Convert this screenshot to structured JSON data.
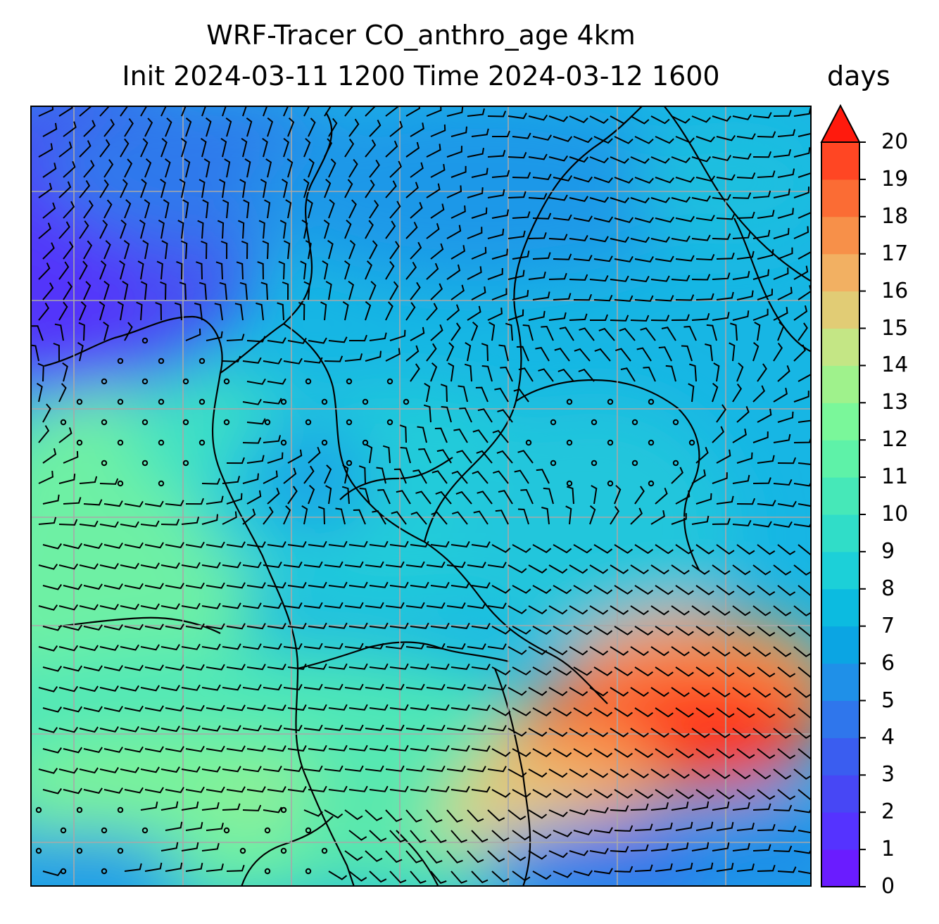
{
  "title": {
    "line1": "WRF-Tracer CO_anthro_age 4km",
    "line2": "Init 2024-03-11 1200 Time 2024-03-12 1600"
  },
  "colorbar": {
    "units": "days",
    "min": 0,
    "max": 20,
    "extend": "max",
    "ticks": [
      "0",
      "1",
      "2",
      "3",
      "4",
      "5",
      "6",
      "7",
      "8",
      "9",
      "10",
      "11",
      "12",
      "13",
      "14",
      "15",
      "16",
      "17",
      "18",
      "19",
      "20"
    ],
    "colors": [
      "#6a1cff",
      "#5533ff",
      "#4747f5",
      "#3a5df0",
      "#2f76ec",
      "#1f90e8",
      "#0ba5e3",
      "#0cbbe0",
      "#1cd0d8",
      "#30ddc8",
      "#46e8b8",
      "#5ef2a8",
      "#7af79a",
      "#9ff28c",
      "#c4e685",
      "#e1cc75",
      "#f2b062",
      "#f79049",
      "#fb6c34",
      "#ff4623"
    ],
    "extend_color": "#ff1a0d"
  },
  "map": {
    "field": "CO_anthro_age",
    "gridlines": true,
    "gridline_color": "#a8a8a8"
  }
}
